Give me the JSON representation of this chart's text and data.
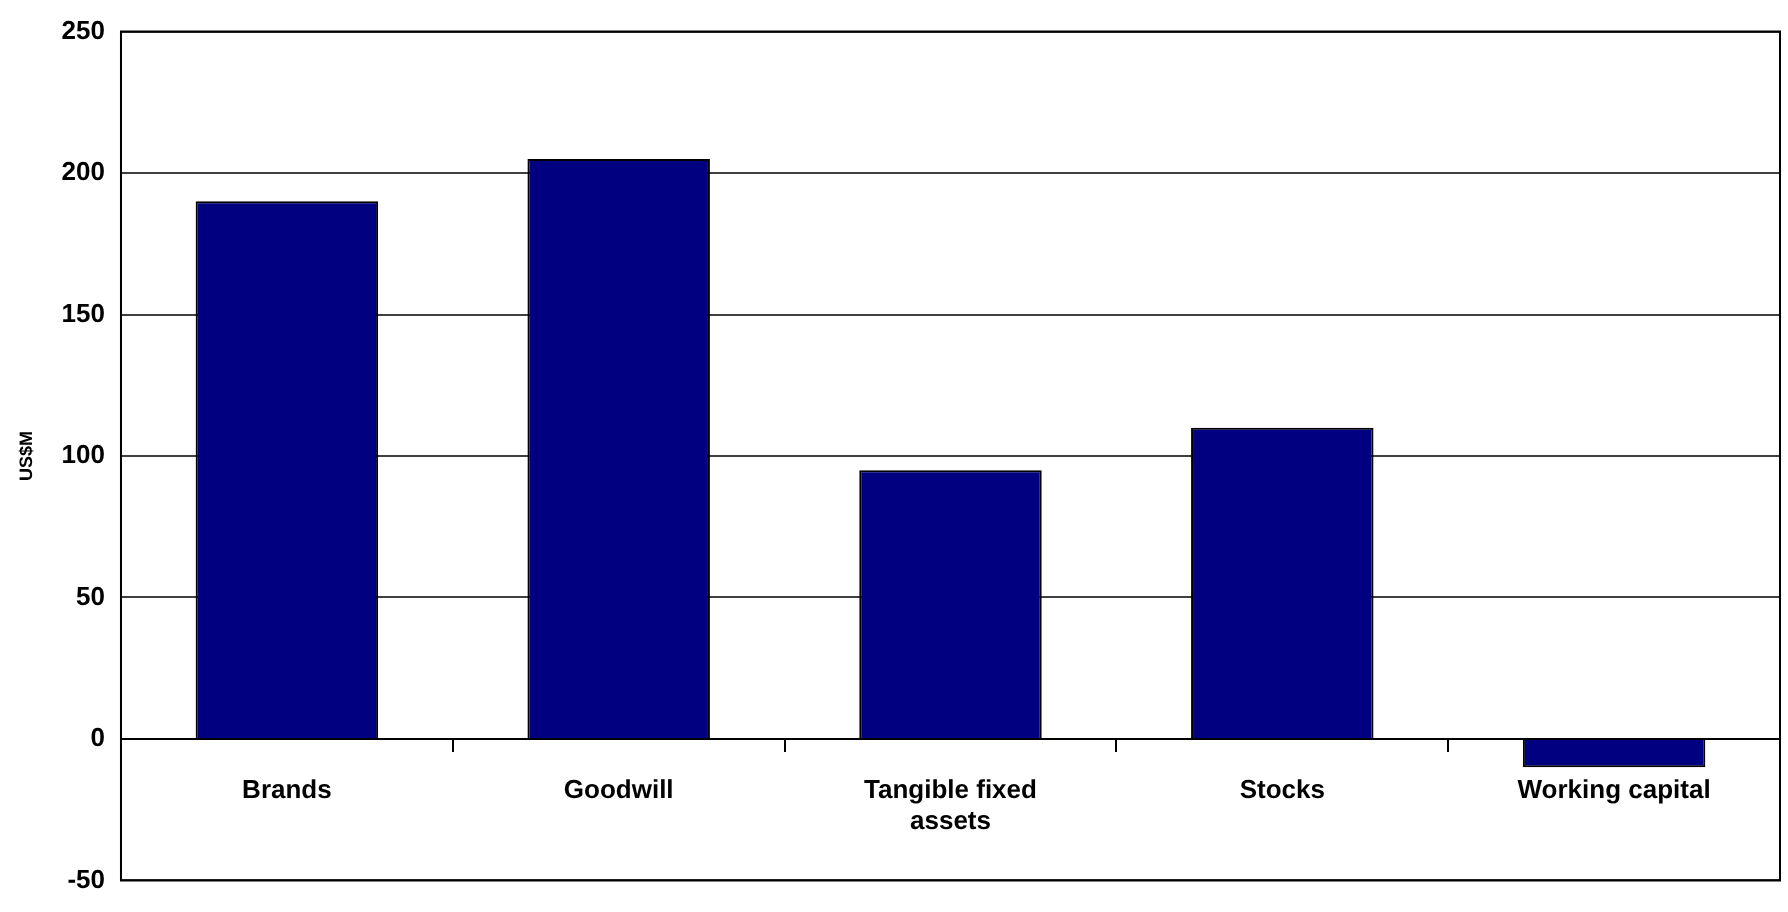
{
  "chart_data": {
    "type": "bar",
    "ylabel": "US$M",
    "categories": [
      "Brands",
      "Goodwill",
      "Tangible fixed assets",
      "Stocks",
      "Working capital"
    ],
    "values": [
      190,
      205,
      95,
      110,
      -10
    ],
    "color": "#000080",
    "ylim": [
      -50,
      250
    ],
    "yticks": [
      -50,
      0,
      50,
      100,
      150,
      200,
      250
    ],
    "grid": "y",
    "legend": false
  }
}
